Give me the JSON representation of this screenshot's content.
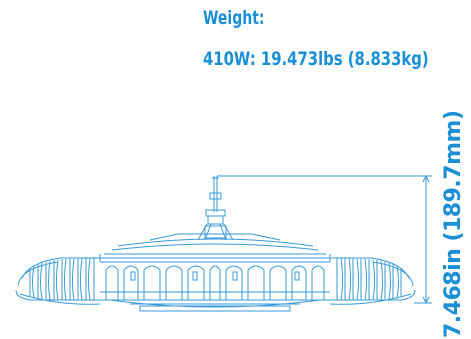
{
  "weight": {
    "heading": "Weight:",
    "value": "410W: 19.473lbs (8.833kg)"
  },
  "dimension": {
    "height_label": "7.468in (189.7mm)"
  },
  "colors": {
    "accent": "#1a8fd6",
    "line": "#3a9ad9"
  }
}
